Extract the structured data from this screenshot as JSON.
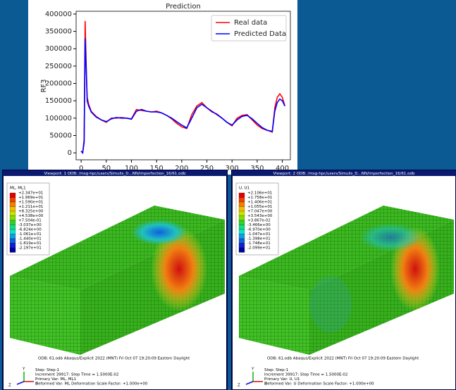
{
  "chart_data": {
    "type": "line",
    "title": "Prediction",
    "ylabel": "RF3",
    "x": [
      0,
      3,
      6,
      8,
      10,
      12,
      15,
      20,
      30,
      40,
      50,
      60,
      70,
      80,
      90,
      100,
      110,
      120,
      130,
      140,
      150,
      160,
      170,
      180,
      190,
      200,
      210,
      220,
      230,
      240,
      250,
      260,
      270,
      280,
      290,
      300,
      310,
      320,
      330,
      340,
      350,
      360,
      370,
      380,
      385,
      390,
      395,
      400,
      405
    ],
    "series": [
      {
        "name": "Real data",
        "color": "#ff0000",
        "values": [
          5000,
          0,
          40000,
          380000,
          250000,
          160000,
          140000,
          120000,
          105000,
          95000,
          88000,
          100000,
          100000,
          102000,
          100000,
          98000,
          125000,
          122000,
          120000,
          118000,
          120000,
          115000,
          108000,
          98000,
          85000,
          75000,
          70000,
          110000,
          135000,
          145000,
          130000,
          118000,
          112000,
          100000,
          88000,
          78000,
          100000,
          108000,
          110000,
          95000,
          80000,
          70000,
          65000,
          60000,
          130000,
          160000,
          170000,
          160000,
          135000
        ]
      },
      {
        "name": "Predicted Data",
        "color": "#0000ff",
        "values": [
          5000,
          0,
          30000,
          330000,
          240000,
          150000,
          135000,
          118000,
          103000,
          95000,
          90000,
          98000,
          102000,
          100000,
          100000,
          97000,
          120000,
          125000,
          120000,
          118000,
          118000,
          115000,
          108000,
          100000,
          90000,
          80000,
          72000,
          100000,
          130000,
          140000,
          130000,
          120000,
          110000,
          100000,
          88000,
          80000,
          95000,
          105000,
          108000,
          98000,
          85000,
          73000,
          65000,
          62000,
          120000,
          145000,
          155000,
          150000,
          135000
        ]
      }
    ],
    "xlim": [
      -10,
      416
    ],
    "ylim": [
      -20000,
      408000
    ],
    "xticks": [
      0,
      50,
      100,
      150,
      200,
      250,
      300,
      350,
      400
    ],
    "yticks": [
      0,
      50000,
      100000,
      150000,
      200000,
      250000,
      300000,
      350000,
      400000
    ],
    "legend": "upper right"
  },
  "viewports": [
    {
      "title": "Viewport: 1     ODB: /msg-hpc/users/Simulis_D...NN/imperfection_16/61.odb",
      "legend_title": "ML, ML1",
      "legend_values": [
        "+2.347e+01",
        "+1.969e+01",
        "+1.590e+01",
        "+1.211e+01",
        "+8.325e+00",
        "+4.538e+00",
        "+7.504e-01",
        "-3.037e+00",
        "-6.824e+00",
        "-1.061e+01",
        "-1.440e+01",
        "-1.819e+01",
        "-2.197e+01"
      ],
      "info": [
        "ODB: 61.odb    Abaqus/Explicit 2022 (MNT)    Fri Oct 07 19:20:09 Eastern Daylight",
        "Step: Step-1",
        "Increment    39917: Step Time =    1.5000E-02",
        "Primary Var: ML, ML1",
        "Deformed Var: ML   Deformation Scale Factor: +1.000e+00"
      ],
      "axes": [
        "Y",
        "Z",
        "X"
      ]
    },
    {
      "title": "Viewport: 2     ODB: /msg-hpc/users/Simulis_D...NN/imperfection_16/61.odb",
      "legend_title": "U, U1",
      "legend_values": [
        "+2.106e+01",
        "+1.758e+01",
        "+1.406e+01",
        "+1.055e+01",
        "+7.047e+00",
        "+3.543e+00",
        "+3.867e-02",
        "-3.466e+00",
        "-6.970e+00",
        "-1.047e+01",
        "-1.398e+01",
        "-1.748e+01",
        "-2.099e+01"
      ],
      "info": [
        "ODB: 61.odb    Abaqus/Explicit 2022 (MNT)    Fri Oct 07 19:20:09 Eastern Daylight",
        "Step: Step-1",
        "Increment    39917: Step Time =    1.5000E-02",
        "Primary Var: U, U1",
        "Deformed Var: U   Deformation Scale Factor: +1.000e+00"
      ],
      "axes": [
        "Y",
        "Z",
        "X"
      ]
    }
  ]
}
